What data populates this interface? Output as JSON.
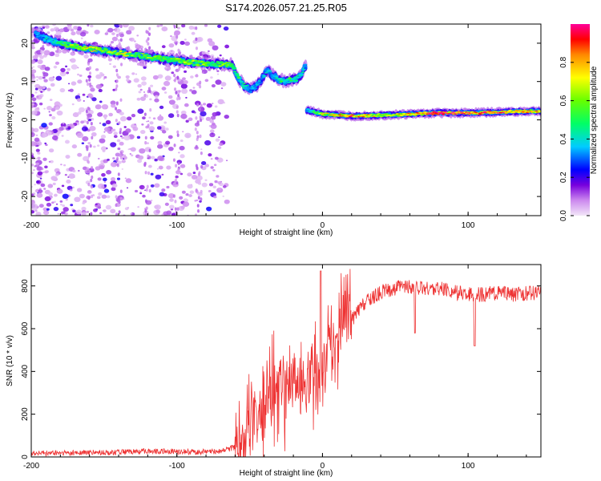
{
  "title": "S174.2026.057.21.25.R05",
  "chart_data": [
    {
      "type": "heatmap",
      "name": "spectrogram",
      "xlabel": "Height of straight line (km)",
      "ylabel": "Frequency (Hz)",
      "xlim": [
        -200,
        150
      ],
      "ylim": [
        -25,
        25
      ],
      "xticks": [
        -200,
        -100,
        0,
        100
      ],
      "xtick_labels": [
        "-200",
        "-100",
        "0",
        "100"
      ],
      "yticks": [
        -20,
        -10,
        0,
        10,
        20
      ],
      "ytick_labels": [
        "-20",
        "-10",
        "0",
        "10",
        "20"
      ],
      "colorbar": {
        "label": "Normalized spectral amplitude",
        "range": [
          0,
          1
        ],
        "ticks": [
          0,
          0.2,
          0.4,
          0.6,
          0.8
        ],
        "tick_labels": [
          "0.0",
          "0.2",
          "0.4",
          "0.6",
          "0.8"
        ]
      },
      "ridge": {
        "x": [
          -195,
          -185,
          -175,
          -165,
          -155,
          -145,
          -135,
          -125,
          -115,
          -105,
          -95,
          -85,
          -75,
          -68,
          -62,
          -58,
          -54,
          -50,
          -46,
          -42,
          -38,
          -34,
          -30,
          -26,
          -22,
          -18,
          -14,
          -12,
          -10,
          0,
          20,
          40,
          60,
          80,
          100,
          120,
          140,
          150
        ],
        "y": [
          22,
          20.5,
          19.5,
          18.8,
          18.3,
          17.8,
          17.3,
          16.8,
          16.2,
          15.7,
          15.2,
          14.8,
          14.6,
          14.4,
          14.5,
          11,
          9,
          8,
          8.5,
          10.5,
          13,
          11.5,
          10.5,
          10.2,
          10.3,
          10.6,
          12,
          14,
          2.5,
          1.5,
          1,
          1.2,
          1.5,
          1.8,
          1.8,
          2.0,
          2.2,
          2.3
        ],
        "amplitude": [
          0.3,
          0.4,
          0.5,
          0.6,
          0.6,
          0.55,
          0.6,
          0.5,
          0.55,
          0.5,
          0.55,
          0.55,
          0.5,
          0.55,
          0.5,
          0.45,
          0.4,
          0.3,
          0.35,
          0.3,
          0.35,
          0.35,
          0.4,
          0.45,
          0.45,
          0.4,
          0.4,
          0.35,
          0.35,
          0.6,
          0.75,
          0.6,
          0.7,
          0.85,
          0.8,
          0.8,
          0.7,
          0.65
        ]
      }
    },
    {
      "type": "line",
      "name": "snr",
      "xlabel": "Height of straight line (km)",
      "ylabel": "SNR (10 * v/v)",
      "xlim": [
        -200,
        150
      ],
      "ylim": [
        0,
        900
      ],
      "xticks": [
        -200,
        -100,
        0,
        100
      ],
      "xtick_labels": [
        "-200",
        "-100",
        "0",
        "100"
      ],
      "yticks": [
        0,
        200,
        400,
        600,
        800
      ],
      "ytick_labels": [
        "0",
        "200",
        "400",
        "600",
        "800"
      ],
      "series": [
        {
          "name": "SNR",
          "color": "#ee3333",
          "x": [
            -200,
            -190,
            -180,
            -170,
            -160,
            -150,
            -140,
            -130,
            -120,
            -110,
            -100,
            -90,
            -80,
            -70,
            -60,
            -55,
            -50,
            -45,
            -40,
            -35,
            -30,
            -25,
            -20,
            -15,
            -10,
            -5,
            0,
            5,
            10,
            15,
            20,
            25,
            30,
            35,
            40,
            50,
            60,
            70,
            80,
            90,
            100,
            110,
            120,
            130,
            140,
            150
          ],
          "y": [
            18,
            17,
            18,
            19,
            20,
            20,
            22,
            24,
            28,
            26,
            25,
            24,
            24,
            28,
            45,
            75,
            130,
            190,
            240,
            280,
            310,
            330,
            360,
            330,
            360,
            380,
            440,
            470,
            540,
            610,
            640,
            690,
            730,
            750,
            770,
            790,
            795,
            785,
            790,
            770,
            760,
            760,
            770,
            760,
            765,
            770
          ]
        }
      ],
      "color_map_stops": [
        "#e8e8e8",
        "#cc88ee",
        "#7700dd",
        "#0000ff",
        "#00ffff",
        "#00ff00",
        "#ffff00",
        "#ff0000",
        "#ff00aa"
      ]
    }
  ]
}
